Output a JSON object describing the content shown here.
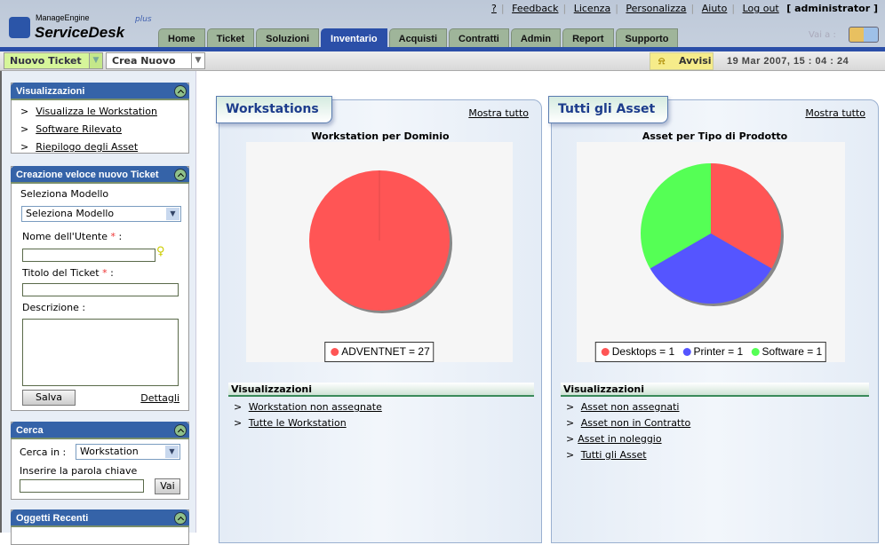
{
  "header": {
    "logo_top": "ManageEngine",
    "logo_main": "ServiceDesk",
    "logo_plus": "plus",
    "links": [
      "?",
      "Feedback",
      "Licenza",
      "Personalizza",
      "Aiuto",
      "Log out"
    ],
    "user": "[ administrator ]",
    "tabs": [
      "Home",
      "Ticket",
      "Soluzioni",
      "Inventario",
      "Acquisti",
      "Contratti",
      "Admin",
      "Report",
      "Supporto"
    ],
    "active_tab": "Inventario",
    "goto_label": "Vai a :"
  },
  "toolbar": {
    "new_ticket": "Nuovo Ticket",
    "create_new": "Crea Nuovo",
    "alerts": "Avvisi",
    "datetime": "19 Mar 2007, 15 : 04 : 24"
  },
  "sidebar": {
    "views": {
      "title": "Visualizzazioni",
      "items": [
        "Visualizza le Workstation",
        "Software Rilevato",
        "Riepilogo degli Asset"
      ]
    },
    "quick": {
      "title": "Creazione veloce nuovo Ticket",
      "template_label": "Seleziona Modello",
      "template_value": "Seleziona Modello",
      "user_label": "Nome dell'Utente",
      "title_label": "Titolo del Ticket",
      "desc_label": "Descrizione :",
      "save": "Salva",
      "details": "Dettagli",
      "required": "*",
      "colon": ":"
    },
    "search": {
      "title": "Cerca",
      "in_label": "Cerca in :",
      "in_value": "Workstation",
      "keyword_label": "Inserire la parola chiave",
      "go": "Vai"
    },
    "recent": {
      "title": "Oggetti Recenti"
    }
  },
  "panels": [
    {
      "title": "Workstations",
      "show_all": "Mostra tutto",
      "views_title": "Visualizzazioni",
      "views": [
        "Workstation non assegnate",
        "Tutte le Workstation"
      ]
    },
    {
      "title": "Tutti gli Asset",
      "show_all": "Mostra tutto",
      "views_title": "Visualizzazioni",
      "views": [
        "Asset non assegnati",
        "Asset non in Contratto",
        "Asset in noleggio",
        "Tutti gli Asset"
      ]
    }
  ],
  "chart_data": [
    {
      "type": "pie",
      "title": "Workstation per Dominio",
      "categories": [
        "ADVENTNET"
      ],
      "values": [
        27
      ],
      "colors": [
        "#ff5555"
      ],
      "legend": [
        "ADVENTNET = 27"
      ],
      "legend_position": "bottom"
    },
    {
      "type": "pie",
      "title": "Asset per Tipo di Prodotto",
      "categories": [
        "Desktops",
        "Printer",
        "Software"
      ],
      "values": [
        1,
        1,
        1
      ],
      "colors": [
        "#ff5555",
        "#5555ff",
        "#55ff55"
      ],
      "legend": [
        "Desktops = 1",
        "Printer = 1",
        "Software = 1"
      ],
      "legend_position": "bottom"
    }
  ]
}
